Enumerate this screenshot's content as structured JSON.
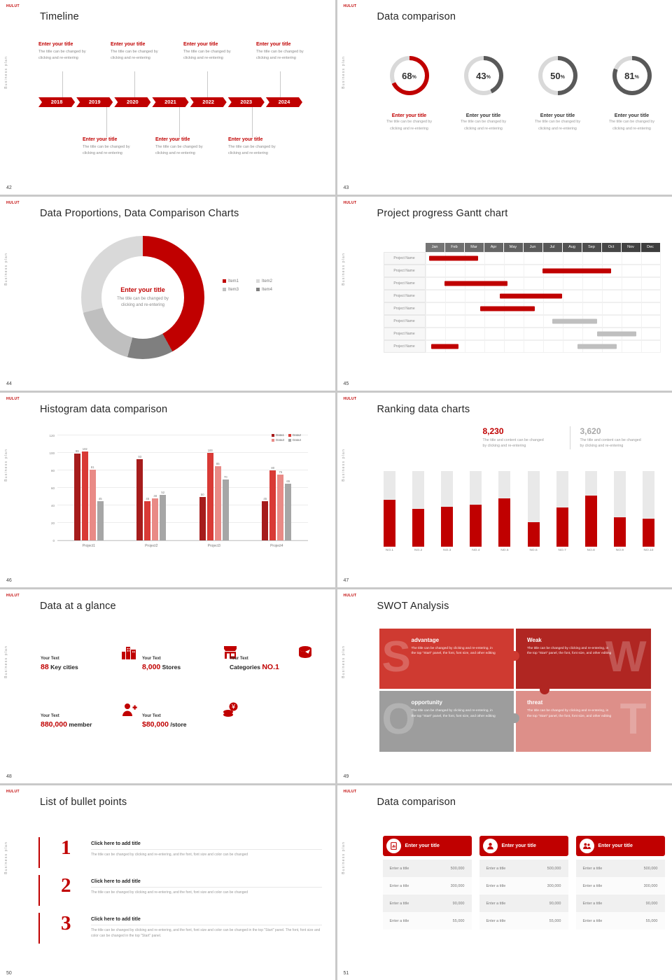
{
  "chrome": {
    "logo_text": "HULUT",
    "side_label": "Business plan",
    "accent": "#c00000"
  },
  "slides": {
    "s42": {
      "number": "42",
      "title": "Timeline",
      "years": [
        "2018",
        "2019",
        "2020",
        "2021",
        "2022",
        "2023",
        "2024"
      ],
      "item_title": "Enter your title",
      "desc_l1": "The title can be changed by",
      "desc_l2": "clicking and re-entering"
    },
    "s43": {
      "number": "43",
      "title": "Data comparison",
      "track_color": "#d9d9d9",
      "pct_sign": "%",
      "donuts": [
        {
          "pct": 68,
          "color": "#c00000"
        },
        {
          "pct": 43,
          "color": "#595959"
        },
        {
          "pct": 50,
          "color": "#595959"
        },
        {
          "pct": 81,
          "color": "#595959"
        }
      ],
      "cap_title": "Enter your title",
      "desc_l1": "The title can be changed by",
      "desc_l2": "clicking and re-entering"
    },
    "s44": {
      "number": "44",
      "title": "Data Proportions, Data Comparison Charts",
      "center_title": "Enter your title",
      "desc_l1": "The title can be changed by",
      "desc_l2": "clicking and re-entering",
      "chart_data": {
        "type": "pie",
        "segments": [
          {
            "label": "Item1",
            "value": 42,
            "color": "#c00000"
          },
          {
            "label": "Item4",
            "value": 12,
            "color": "#7f7f7f"
          },
          {
            "label": "Item3",
            "value": 17,
            "color": "#bfbfbf"
          },
          {
            "label": "Item2",
            "value": 29,
            "color": "#d9d9d9"
          }
        ]
      },
      "legend": [
        {
          "label": "Item1",
          "color": "#c00000"
        },
        {
          "label": "Item2",
          "color": "#d9d9d9"
        },
        {
          "label": "Item3",
          "color": "#bfbfbf"
        },
        {
          "label": "Item4",
          "color": "#7f7f7f"
        }
      ]
    },
    "s45": {
      "number": "45",
      "title": "Project progress Gantt chart",
      "months": [
        "Jan",
        "Feb",
        "Mar",
        "Apr",
        "May",
        "Jun",
        "Jul",
        "Aug",
        "Sep",
        "Oct",
        "Nov",
        "Dec"
      ],
      "row_label": "Project Name",
      "bar_colors": {
        "red": "#c00000",
        "gray": "#bfbfbf"
      },
      "rows": [
        [
          {
            "color": "red",
            "start": 0.2,
            "end": 2.7
          }
        ],
        [
          {
            "color": "red",
            "start": 6.0,
            "end": 9.5
          }
        ],
        [
          {
            "color": "red",
            "start": 1.0,
            "end": 4.2
          }
        ],
        [
          {
            "color": "red",
            "start": 3.8,
            "end": 7.0
          }
        ],
        [
          {
            "color": "red",
            "start": 2.8,
            "end": 5.6
          }
        ],
        [
          {
            "color": "gray",
            "start": 6.5,
            "end": 8.8
          }
        ],
        [
          {
            "color": "gray",
            "start": 8.8,
            "end": 10.8
          }
        ],
        [
          {
            "color": "red",
            "start": 0.3,
            "end": 1.7
          },
          {
            "color": "gray",
            "start": 7.8,
            "end": 9.8
          }
        ]
      ]
    },
    "s46": {
      "number": "46",
      "title": "Histogram data comparison",
      "chart_data": {
        "type": "bar",
        "categories": [
          "Project1",
          "Project2",
          "Project3",
          "Project4"
        ],
        "series": [
          {
            "name": "Data1",
            "color": "#a61c1c",
            "values": [
              99,
              93,
              50,
              45
            ]
          },
          {
            "name": "Data2",
            "color": "#d93a36",
            "values": [
              102,
              45,
              100,
              80
            ]
          },
          {
            "name": "Data3",
            "color": "#e98a86",
            "values": [
              81,
              48,
              85,
              75
            ]
          },
          {
            "name": "Data4",
            "color": "#a6a6a6",
            "values": [
              45,
              52,
              70,
              65
            ]
          }
        ],
        "y_ticks": [
          0,
          20,
          40,
          60,
          80,
          100,
          120
        ],
        "y_max": 120,
        "legend_position": "top-right",
        "grid": true
      }
    },
    "s47": {
      "number": "47",
      "title": "Ranking data charts",
      "stats": [
        {
          "value": "8,230",
          "color": "#c00000",
          "desc_l1": "The title and content can be changed",
          "desc_l2": "by clicking and re-entering"
        },
        {
          "value": "3,620",
          "color": "#a8a8a8",
          "desc_l1": "The title and content can be changed",
          "desc_l2": "by clicking and re-entering"
        }
      ],
      "chart_data": {
        "type": "bar",
        "categories": [
          "NO.1",
          "NO.2",
          "NO.3",
          "NO.4",
          "NO.5",
          "NO.6",
          "NO.7",
          "NO.8",
          "NO.9",
          "NO.10"
        ],
        "values_pct": [
          62,
          50,
          53,
          56,
          64,
          33,
          52,
          68,
          39,
          37
        ],
        "bar_color": "#c00000",
        "track_color": "#e9e9e9"
      }
    },
    "s48": {
      "number": "48",
      "title": "Data at a glance",
      "items": [
        {
          "label": "Your Text",
          "red": "88",
          "dark": "Key cities",
          "icon": "city-icon"
        },
        {
          "label": "Your Text",
          "red": "8,000",
          "dark": "Stores",
          "icon": "store-icon"
        },
        {
          "label": "Your Text",
          "dark": "Categories",
          "red": "NO.1",
          "icon": "categories-icon"
        },
        {
          "label": "Your Text",
          "red": "880,000",
          "dark": "member",
          "icon": "member-icon"
        },
        {
          "label": "Your Text",
          "red": "$80,000",
          "dark": "/store",
          "icon": "money-icon"
        }
      ]
    },
    "s49": {
      "number": "49",
      "title": "SWOT Analysis",
      "desc": "The title can be changed by clicking and re-entering, in the top \"Start\" panel, the font, font size, and other editing",
      "quads": [
        {
          "letter": "S",
          "title": "advantage",
          "color": "#cf3a31"
        },
        {
          "letter": "W",
          "title": "Weak",
          "color": "#b02622"
        },
        {
          "letter": "O",
          "title": "opportunity",
          "color": "#9d9d9d"
        },
        {
          "letter": "T",
          "title": "threat",
          "color": "#dd8f89"
        }
      ]
    },
    "s50": {
      "number": "50",
      "title": "List of bullet points",
      "items": [
        {
          "num": "1",
          "title": "Click here to add title",
          "desc": "The title can be changed by clicking and re-entering, and the font, font size and color can be changed"
        },
        {
          "num": "2",
          "title": "Click here to add title",
          "desc": "The title can be changed by clicking and re-entering, and the font, font size and color can be changed"
        },
        {
          "num": "3",
          "title": "Click here to add title",
          "desc": "The title can be changed by clicking and re-entering, and the font, font size and color can be changed in the top \"Start\" panel. The font, font size and color can be changed in the top \"Start\" panel."
        }
      ]
    },
    "s51": {
      "number": "51",
      "title": "Data comparison",
      "header": "Enter your title",
      "row_label": "Enter a title",
      "values": [
        "500,000",
        "300,000",
        "90,000",
        "55,000"
      ]
    }
  }
}
